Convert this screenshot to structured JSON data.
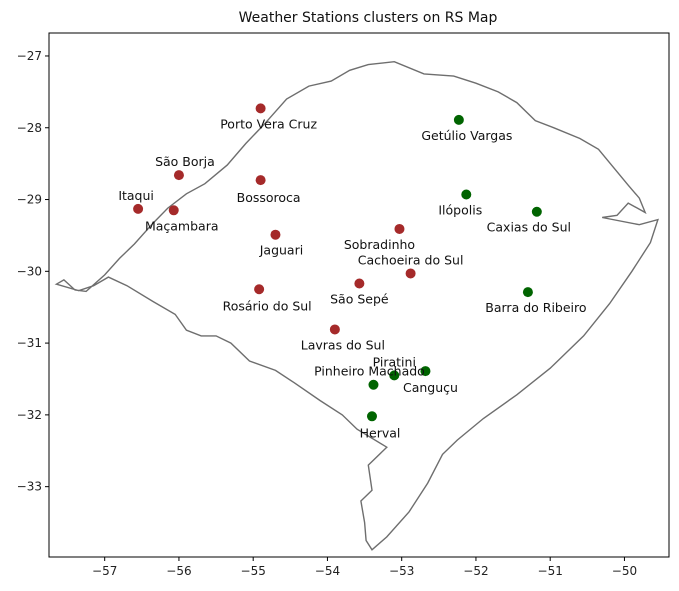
{
  "chart_data": {
    "type": "scatter",
    "title": "Weather Stations clusters on RS Map",
    "xlabel": "",
    "ylabel": "",
    "xlim": [
      -57.75,
      -49.4
    ],
    "ylim": [
      -33.98,
      -26.68
    ],
    "x_ticks": [
      -57,
      -56,
      -55,
      -54,
      -53,
      -52,
      -51,
      -50
    ],
    "y_ticks": [
      -27,
      -28,
      -29,
      -30,
      -31,
      -32,
      -33
    ],
    "x_tick_labels": [
      "−57",
      "−56",
      "−55",
      "−54",
      "−53",
      "−52",
      "−51",
      "−50"
    ],
    "y_tick_labels": [
      "−27",
      "−28",
      "−29",
      "−30",
      "−31",
      "−32",
      "−33"
    ],
    "grid": false,
    "colors": {
      "cluster_a": "#a52a2a",
      "cluster_b": "#006400",
      "border": "#555555"
    },
    "series": [
      {
        "color": "#a52a2a",
        "points": [
          {
            "name": "Porto Vera Cruz",
            "x": -54.9,
            "y": -27.73
          },
          {
            "name": "São Borja",
            "x": -56.0,
            "y": -28.66
          },
          {
            "name": "Bossoroca",
            "x": -54.9,
            "y": -28.73
          },
          {
            "name": "Itaqui",
            "x": -56.55,
            "y": -29.13
          },
          {
            "name": "Maçambara",
            "x": -56.07,
            "y": -29.15
          },
          {
            "name": "Jaguari",
            "x": -54.7,
            "y": -29.49
          },
          {
            "name": "Sobradinho",
            "x": -53.03,
            "y": -29.41
          },
          {
            "name": "Cachoeira do Sul",
            "x": -52.88,
            "y": -30.03
          },
          {
            "name": "São Sepé",
            "x": -53.57,
            "y": -30.17
          },
          {
            "name": "Rosário do Sul",
            "x": -54.92,
            "y": -30.25
          },
          {
            "name": "Lavras do Sul",
            "x": -53.9,
            "y": -30.81
          }
        ]
      },
      {
        "color": "#006400",
        "points": [
          {
            "name": "Getúlio Vargas",
            "x": -52.23,
            "y": -27.89
          },
          {
            "name": "Ilópolis",
            "x": -52.13,
            "y": -28.93
          },
          {
            "name": "Caxias do Sul",
            "x": -51.18,
            "y": -29.17
          },
          {
            "name": "Barra do Ribeiro",
            "x": -51.3,
            "y": -30.29
          },
          {
            "name": "Piratini",
            "x": -53.1,
            "y": -31.45
          },
          {
            "name": "Canguçu",
            "x": -52.68,
            "y": -31.39
          },
          {
            "name": "Pinheiro Machado",
            "x": -53.38,
            "y": -31.58
          },
          {
            "name": "Herval",
            "x": -53.4,
            "y": -32.02
          }
        ]
      }
    ],
    "boundary": [
      [
        -57.65,
        -30.18
      ],
      [
        -57.55,
        -30.12
      ],
      [
        -57.4,
        -30.26
      ],
      [
        -57.25,
        -30.28
      ],
      [
        -57.0,
        -30.05
      ],
      [
        -56.8,
        -29.82
      ],
      [
        -56.6,
        -29.62
      ],
      [
        -56.35,
        -29.33
      ],
      [
        -56.15,
        -29.12
      ],
      [
        -55.9,
        -28.92
      ],
      [
        -55.65,
        -28.78
      ],
      [
        -55.35,
        -28.52
      ],
      [
        -55.1,
        -28.22
      ],
      [
        -54.85,
        -27.95
      ],
      [
        -54.55,
        -27.6
      ],
      [
        -54.25,
        -27.42
      ],
      [
        -53.95,
        -27.35
      ],
      [
        -53.7,
        -27.2
      ],
      [
        -53.45,
        -27.12
      ],
      [
        -53.1,
        -27.08
      ],
      [
        -52.7,
        -27.25
      ],
      [
        -52.3,
        -27.28
      ],
      [
        -52.0,
        -27.38
      ],
      [
        -51.7,
        -27.5
      ],
      [
        -51.45,
        -27.65
      ],
      [
        -51.2,
        -27.9
      ],
      [
        -50.95,
        -28.0
      ],
      [
        -50.6,
        -28.15
      ],
      [
        -50.35,
        -28.3
      ],
      [
        -50.15,
        -28.55
      ],
      [
        -49.95,
        -28.8
      ],
      [
        -49.8,
        -28.98
      ],
      [
        -49.72,
        -29.18
      ],
      [
        -49.95,
        -29.05
      ],
      [
        -50.1,
        -29.22
      ],
      [
        -50.3,
        -29.25
      ],
      [
        -49.8,
        -29.35
      ],
      [
        -49.55,
        -29.28
      ],
      [
        -49.65,
        -29.6
      ],
      [
        -49.9,
        -30.0
      ],
      [
        -50.2,
        -30.45
      ],
      [
        -50.55,
        -30.9
      ],
      [
        -51.0,
        -31.35
      ],
      [
        -51.45,
        -31.72
      ],
      [
        -51.9,
        -32.05
      ],
      [
        -52.25,
        -32.35
      ],
      [
        -52.45,
        -32.55
      ],
      [
        -52.65,
        -32.95
      ],
      [
        -52.9,
        -33.35
      ],
      [
        -53.2,
        -33.7
      ],
      [
        -53.4,
        -33.88
      ],
      [
        -53.48,
        -33.75
      ],
      [
        -53.5,
        -33.5
      ],
      [
        -53.55,
        -33.2
      ],
      [
        -53.4,
        -33.05
      ],
      [
        -53.45,
        -32.7
      ],
      [
        -53.2,
        -32.45
      ],
      [
        -53.6,
        -32.2
      ],
      [
        -53.8,
        -32.0
      ],
      [
        -54.1,
        -31.8
      ],
      [
        -54.45,
        -31.55
      ],
      [
        -54.7,
        -31.38
      ],
      [
        -55.05,
        -31.25
      ],
      [
        -55.3,
        -31.0
      ],
      [
        -55.5,
        -30.9
      ],
      [
        -55.7,
        -30.9
      ],
      [
        -55.9,
        -30.82
      ],
      [
        -56.05,
        -30.6
      ],
      [
        -56.35,
        -30.42
      ],
      [
        -56.7,
        -30.2
      ],
      [
        -56.95,
        -30.08
      ],
      [
        -57.15,
        -30.2
      ],
      [
        -57.35,
        -30.27
      ],
      [
        -57.65,
        -30.18
      ]
    ]
  }
}
